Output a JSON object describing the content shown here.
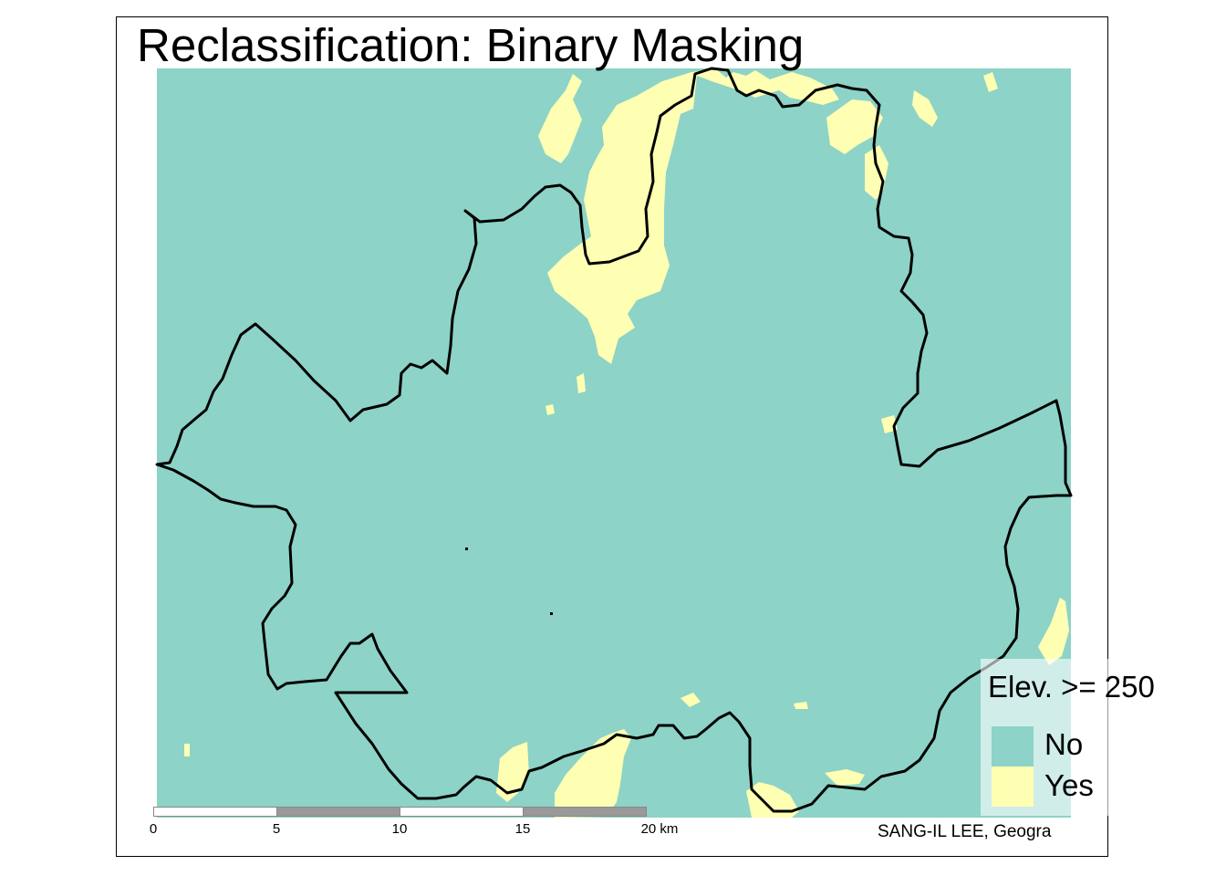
{
  "title": "Reclassification: Binary Masking",
  "colors": {
    "no": "#8DD3C7",
    "yes": "#FFFFB3",
    "boundary": "#000000"
  },
  "legend": {
    "title": "Elev. >= 250",
    "items": [
      {
        "label": "No",
        "color": "#8DD3C7"
      },
      {
        "label": "Yes",
        "color": "#FFFFB3"
      }
    ]
  },
  "scale_bar": {
    "ticks": [
      "0",
      "5",
      "10",
      "15",
      "20 km"
    ],
    "colors": [
      "#ffffff",
      "#999999",
      "#ffffff",
      "#999999"
    ]
  },
  "credit": "SANG-IL LEE, Geogra"
}
